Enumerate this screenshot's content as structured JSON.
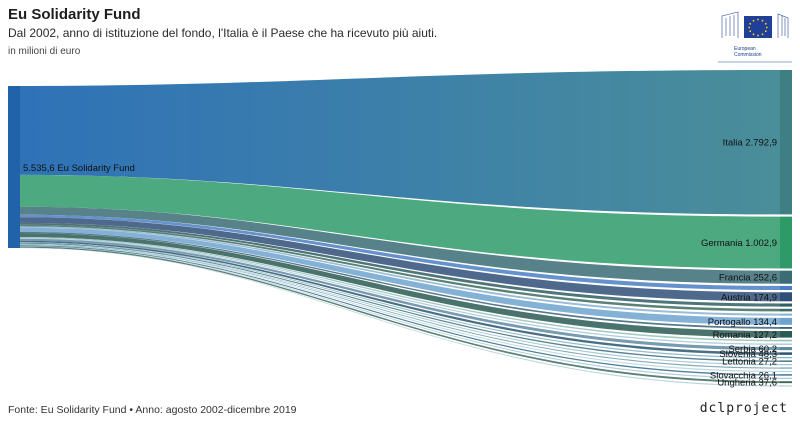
{
  "title": "Eu Solidarity Fund",
  "subtitle": "Dal 2002, anno di istituzione del fondo, l'Italia è il Paese che ha ricevuto più aiuti.",
  "unit": "in milioni di euro",
  "source": "Fonte: Eu Solidarity Fund • Anno: agosto 2002-dicembre 2019",
  "brand": "dclproject",
  "logo": {
    "line1": "European",
    "line2": "Commission"
  },
  "chart_data": {
    "type": "sankey",
    "source_node": {
      "label": "5.535,6 Eu Solidarity Fund",
      "value": 5535.6
    },
    "flows": [
      {
        "label": "Italia 2.792,9",
        "value": 2792.9,
        "shown": true,
        "color": "#4a8aa0"
      },
      {
        "label": "Germania 1.002,9",
        "value": 1002.9,
        "shown": true,
        "color": "#2e9a68"
      },
      {
        "label": "Francia 252,6",
        "value": 252.6,
        "shown": true,
        "color": "#3a6c74"
      },
      {
        "label": "",
        "value": 80,
        "shown": false,
        "color": "#4a7fc4"
      },
      {
        "label": "Austria 174,9",
        "value": 174.9,
        "shown": true,
        "color": "#2f4f78"
      },
      {
        "label": "",
        "value": 60,
        "shown": false,
        "color": "#2f5e63"
      },
      {
        "label": "",
        "value": 50,
        "shown": false,
        "color": "#3d6b5e"
      },
      {
        "label": "",
        "value": 40,
        "shown": false,
        "color": "#8ab0cf"
      },
      {
        "label": "Portogallo 134,4",
        "value": 134.4,
        "shown": true,
        "color": "#6ea3cf"
      },
      {
        "label": "",
        "value": 35,
        "shown": false,
        "color": "#38627a"
      },
      {
        "label": "Romania 127,2",
        "value": 127.2,
        "shown": true,
        "color": "#2c5a55"
      },
      {
        "label": "",
        "value": 30,
        "shown": false,
        "color": "#8fc0b8"
      },
      {
        "label": "",
        "value": 25,
        "shown": false,
        "color": "#a5c4d6"
      },
      {
        "label": "Serbia 60,2",
        "value": 60.2,
        "shown": true,
        "color": "#5f8aa3"
      },
      {
        "label": "Slovenia 48,3",
        "value": 48.3,
        "shown": true,
        "color": "#2a5670"
      },
      {
        "label": "",
        "value": 20,
        "shown": false,
        "color": "#7fb0c0"
      },
      {
        "label": "Lettonia 27,2",
        "value": 27.2,
        "shown": true,
        "color": "#3b6f80"
      },
      {
        "label": "",
        "value": 18,
        "shown": false,
        "color": "#9cc3cf"
      },
      {
        "label": "",
        "value": 16,
        "shown": false,
        "color": "#6f9caf"
      },
      {
        "label": "",
        "value": 14,
        "shown": false,
        "color": "#b8d4de"
      },
      {
        "label": "Slovacchia 26,1",
        "value": 26.1,
        "shown": true,
        "color": "#2e6a8a"
      },
      {
        "label": "",
        "value": 12,
        "shown": false,
        "color": "#a9c8d4"
      },
      {
        "label": "Ungheria 37,6",
        "value": 37.6,
        "shown": true,
        "color": "#3d6a5e"
      },
      {
        "label": "",
        "value": 10,
        "shown": false,
        "color": "#b0cfd9"
      }
    ]
  }
}
